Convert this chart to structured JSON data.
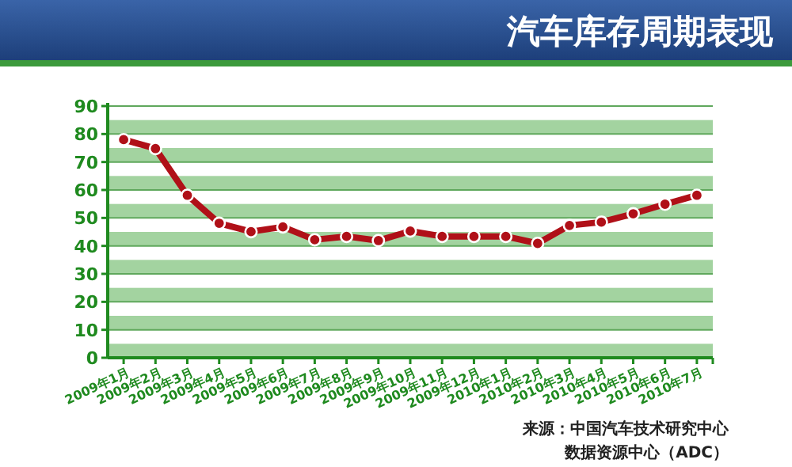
{
  "chart_data": {
    "type": "line",
    "title": "汽车库存周期表现",
    "categories": [
      "2009年1月",
      "2009年2月",
      "2009年3月",
      "2009年4月",
      "2009年5月",
      "2009年6月",
      "2009年7月",
      "2009年8月",
      "2009年9月",
      "2009年10月",
      "2009年11月",
      "2009年12月",
      "2010年1月",
      "2010年2月",
      "2010年3月",
      "2010年4月",
      "2010年5月",
      "2010年6月",
      "2010年7月"
    ],
    "series": [
      {
        "color": "#b01018",
        "values": [
          78,
          74.8,
          58.1,
          48.1,
          45.1,
          46.8,
          42.2,
          43.4,
          41.9,
          45.3,
          43.4,
          43.4,
          43.4,
          40.9,
          47.3,
          48.5,
          51.5,
          54.9,
          58.1
        ]
      }
    ],
    "ylim": [
      0,
      90
    ],
    "yticks": [
      0,
      10,
      20,
      30,
      40,
      50,
      60,
      70,
      80,
      90
    ],
    "grid": "y",
    "marker": "circle",
    "line_style": "solid",
    "bands": [
      {
        "axis": "y",
        "from": 0,
        "to": 5,
        "color": "#a3d3a0"
      },
      {
        "axis": "y",
        "from": 10,
        "to": 15,
        "color": "#a3d3a0"
      },
      {
        "axis": "y",
        "from": 20,
        "to": 25,
        "color": "#a3d3a0"
      },
      {
        "axis": "y",
        "from": 30,
        "to": 35,
        "color": "#a3d3a0"
      },
      {
        "axis": "y",
        "from": 40,
        "to": 45,
        "color": "#a3d3a0"
      },
      {
        "axis": "y",
        "from": 50,
        "to": 55,
        "color": "#a3d3a0"
      },
      {
        "axis": "y",
        "from": 60,
        "to": 65,
        "color": "#a3d3a0"
      },
      {
        "axis": "y",
        "from": 70,
        "to": 75,
        "color": "#a3d3a0"
      },
      {
        "axis": "y",
        "from": 80,
        "to": 85,
        "color": "#a3d3a0"
      }
    ],
    "annotations": [
      "来源：中国汽车技术研究中心",
      "数据资源中心（ADC）"
    ]
  }
}
